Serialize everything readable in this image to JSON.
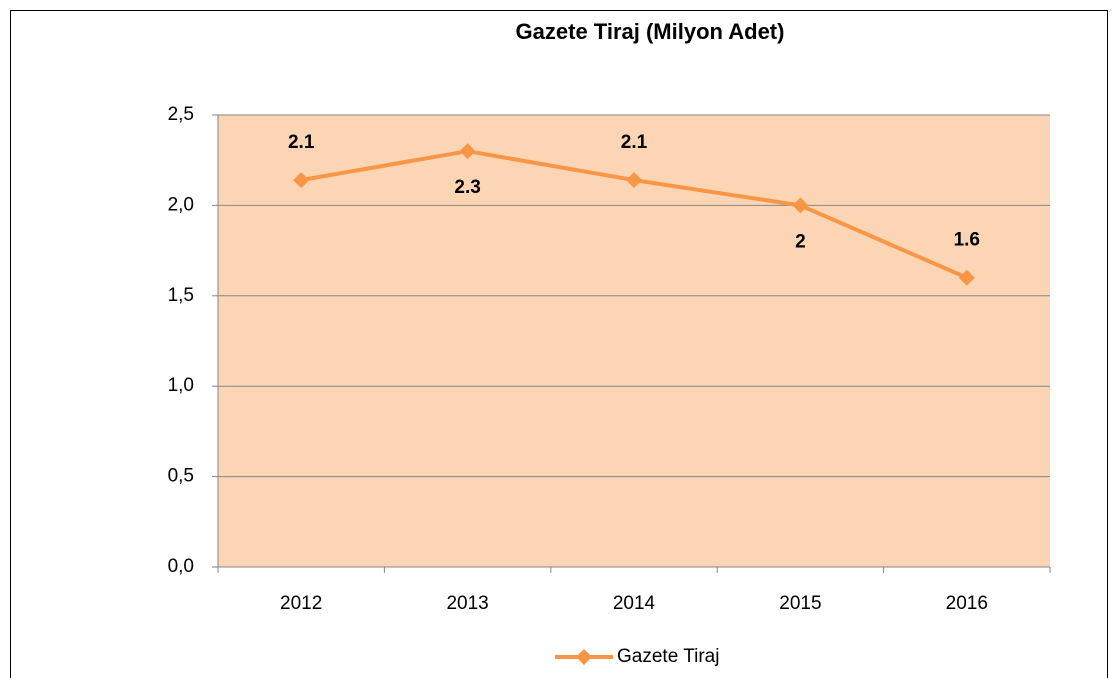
{
  "chart_data": {
    "type": "line",
    "title": "Gazete Tiraj (Milyon Adet)",
    "categories": [
      "2012",
      "2013",
      "2014",
      "2015",
      "2016"
    ],
    "series": [
      {
        "name": "Gazete Tiraj",
        "color": "#f79646",
        "values": [
          2.14,
          2.3,
          2.14,
          2.0,
          1.6
        ],
        "value_labels": [
          "2.1",
          "2.3",
          "2.1",
          "2",
          "1.6"
        ]
      }
    ],
    "ylim": [
      0,
      2.5
    ],
    "yticks": [
      {
        "value": 0,
        "label": "0,0"
      },
      {
        "value": 0.5,
        "label": "0,5"
      },
      {
        "value": 1,
        "label": "1,0"
      },
      {
        "value": 1.5,
        "label": "1,5"
      },
      {
        "value": 2,
        "label": "2,0"
      },
      {
        "value": 2.5,
        "label": "2,5"
      }
    ],
    "grid": true,
    "plot_background": "#fcd5b5",
    "legend": "bottom"
  }
}
